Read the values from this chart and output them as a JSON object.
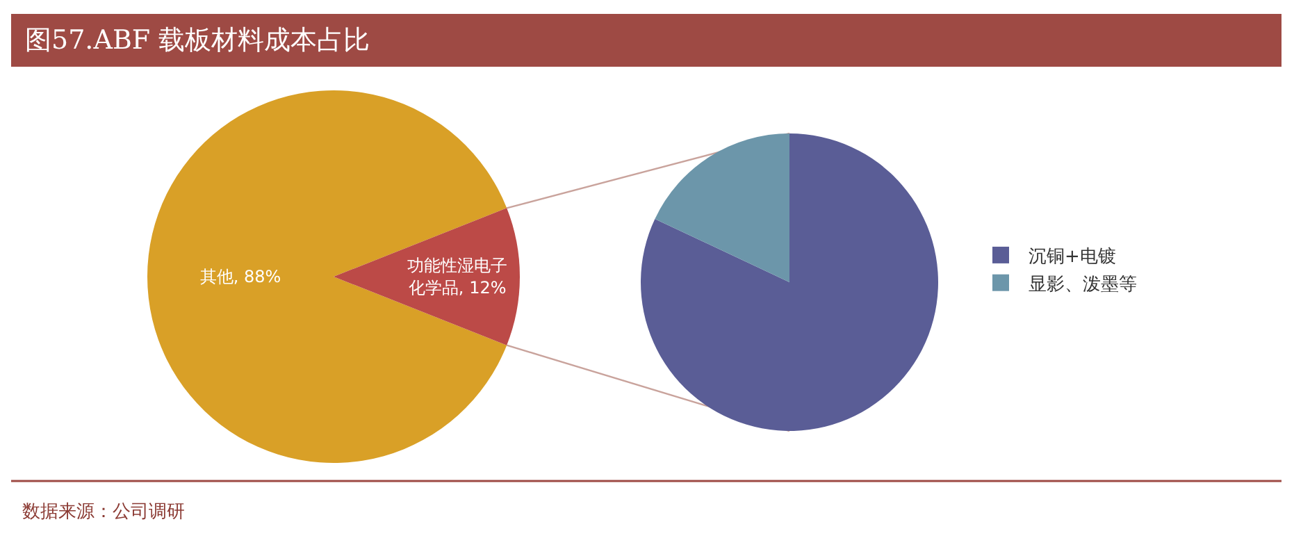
{
  "chart_data": [
    {
      "type": "pie",
      "title": "图57.ABF 载板材料成本占比",
      "categories": [
        "其他",
        "功能性湿电子化学品"
      ],
      "values": [
        88,
        12
      ],
      "colors": [
        "#d9a027",
        "#bc4a47"
      ],
      "value_labels": [
        "88%",
        "12%"
      ],
      "annotations": [
        "数据来源：公司调研"
      ]
    },
    {
      "type": "pie",
      "categories": [
        "沉铜+电镀",
        "显影、泼墨等"
      ],
      "values": [
        82,
        18
      ],
      "colors": [
        "#5a5d96",
        "#6c96aa"
      ],
      "legend": "right"
    }
  ]
}
